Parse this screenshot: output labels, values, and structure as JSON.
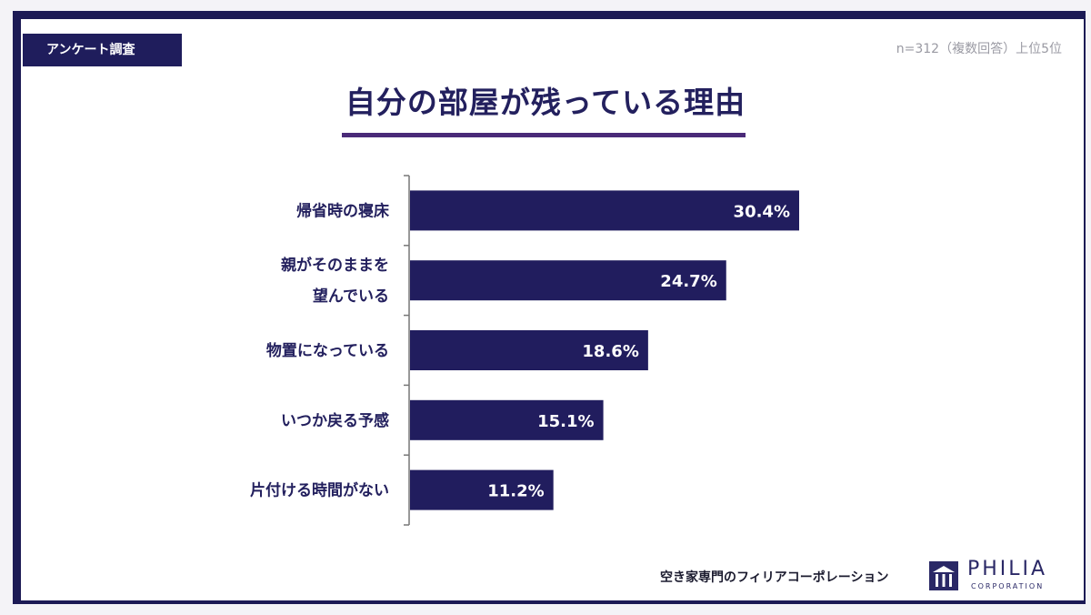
{
  "header": {
    "tag": "アンケート調査",
    "sample": "n=312（複数回答）上位5位",
    "title": "自分の部屋が残っている理由"
  },
  "chart_data": {
    "type": "bar",
    "orientation": "horizontal",
    "categories": [
      [
        "帰省時の寝床"
      ],
      [
        "親がそのままを",
        "望んでいる"
      ],
      [
        "物置になっている"
      ],
      [
        "いつか戻る予感"
      ],
      [
        "片付ける時間がない"
      ]
    ],
    "values": [
      30.4,
      24.7,
      18.6,
      15.1,
      11.2
    ],
    "value_labels": [
      "30.4%",
      "24.7%",
      "18.6%",
      "15.1%",
      "11.2%"
    ],
    "unit": "%",
    "bar_color": "#211d5e",
    "xlim": [
      0,
      30.4
    ],
    "grid": false,
    "legend": "none"
  },
  "footer": {
    "text": "空き家専門のフィリアコーポレーション",
    "brand": "PHILIA",
    "brand_sub": "CORPORATION"
  },
  "colors": {
    "navy": "#1f1d5c",
    "accent_purple": "#4a2a78"
  }
}
